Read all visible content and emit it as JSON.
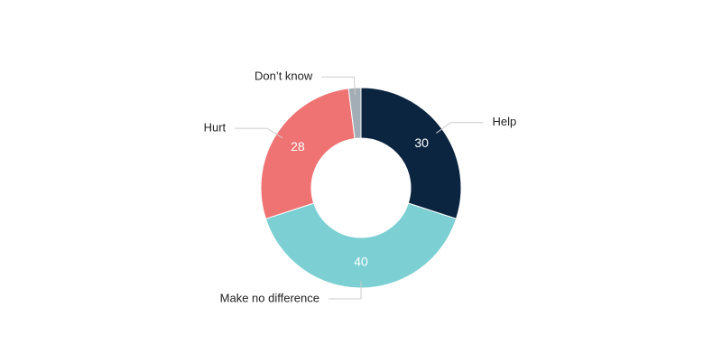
{
  "chart_data": {
    "type": "donut",
    "categories": [
      "Help",
      "Make no difference",
      "Hurt",
      "Don’t know"
    ],
    "values": [
      30,
      40,
      28,
      2
    ],
    "colors": [
      "#0b2540",
      "#7ccfd3",
      "#f07373",
      "#a3adb5"
    ]
  }
}
